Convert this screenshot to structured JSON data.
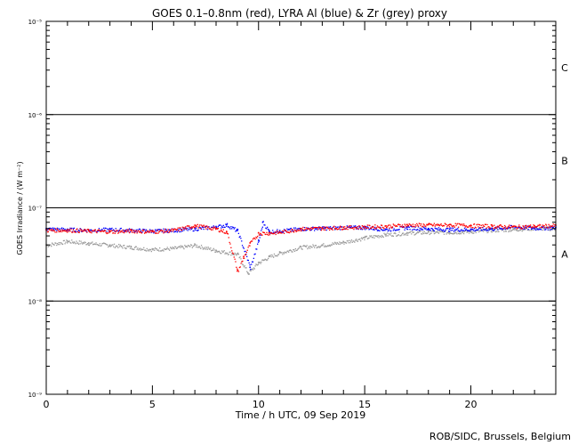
{
  "chart_data": {
    "type": "scatter",
    "title": "GOES 0.1–0.8nm (red), LYRA Al (blue) & Zr (grey) proxy",
    "xlabel": "Time / h UTC, 09 Sep 2019",
    "ylabel": "GOES Irradiance / (W m⁻²)",
    "xlim": [
      0,
      24
    ],
    "ylim": [
      1e-09,
      1e-05
    ],
    "yscale": "log",
    "x_ticks": [
      0,
      5,
      10,
      15,
      20
    ],
    "x_tick_labels": [
      "0",
      "5",
      "10",
      "15",
      "20"
    ],
    "y_ticks": [
      1e-09,
      1e-08,
      1e-07,
      1e-06,
      1e-05
    ],
    "y_tick_labels": [
      "10⁻⁹",
      "10⁻⁸",
      "10⁻⁷",
      "10⁻⁶",
      "10⁻⁵"
    ],
    "grid": "horizontal lines at 1e-8, 1e-7, 1e-6",
    "flare_classes": [
      {
        "label": "C",
        "value": 3.2e-06
      },
      {
        "label": "B",
        "value": 3.2e-07
      },
      {
        "label": "A",
        "value": 3.2e-08
      }
    ],
    "series": [
      {
        "color": "#ff0000",
        "x": [
          0,
          1,
          2,
          3,
          4,
          5,
          6,
          7,
          8,
          8.5,
          9,
          9.3,
          9.6,
          10,
          10.5,
          11,
          12,
          13,
          14,
          15,
          16,
          17,
          18,
          19,
          20,
          21,
          22,
          23,
          24
        ],
        "values": [
          5.8e-08,
          5.8e-08,
          5.7e-08,
          5.6e-08,
          5.7e-08,
          5.6e-08,
          5.8e-08,
          6.5e-08,
          6e-08,
          5.5e-08,
          2.1e-08,
          3e-08,
          4.2e-08,
          5.4e-08,
          5.4e-08,
          5.5e-08,
          6e-08,
          6.1e-08,
          6.2e-08,
          6.3e-08,
          6.4e-08,
          6.6e-08,
          6.6e-08,
          6.6e-08,
          6.5e-08,
          6.4e-08,
          6.3e-08,
          6.4e-08,
          6.5e-08
        ]
      },
      {
        "color": "#0000ff",
        "x": [
          0,
          1,
          2,
          3,
          4,
          5,
          6,
          7,
          8,
          8.5,
          9,
          9.6,
          10,
          10.2,
          10.5,
          11,
          12,
          13,
          14,
          15,
          16,
          17,
          18,
          19,
          20,
          21,
          22,
          23,
          24
        ],
        "values": [
          6e-08,
          5.9e-08,
          5.8e-08,
          5.9e-08,
          5.8e-08,
          5.7e-08,
          5.8e-08,
          6e-08,
          6.3e-08,
          6.6e-08,
          5.7e-08,
          2.3e-08,
          4.5e-08,
          7e-08,
          5.6e-08,
          5.7e-08,
          6e-08,
          6.1e-08,
          6.2e-08,
          6.2e-08,
          5.9e-08,
          6.2e-08,
          6e-08,
          5.9e-08,
          5.9e-08,
          6e-08,
          6.3e-08,
          6.1e-08,
          6.2e-08
        ]
      },
      {
        "color": "#9a9a9a",
        "x": [
          0,
          1,
          2,
          3,
          4,
          5,
          6,
          7,
          8,
          9,
          9.5,
          10,
          10.5,
          11,
          12,
          13,
          14,
          15,
          16,
          17,
          18,
          19,
          20,
          21,
          22,
          23,
          24
        ],
        "values": [
          4e-08,
          4.4e-08,
          4.2e-08,
          4e-08,
          3.8e-08,
          3.6e-08,
          3.7e-08,
          4e-08,
          3.5e-08,
          3.2e-08,
          2e-08,
          2.6e-08,
          3e-08,
          3.3e-08,
          3.8e-08,
          4e-08,
          4.3e-08,
          4.8e-08,
          5.2e-08,
          5.4e-08,
          5.5e-08,
          5.5e-08,
          5.6e-08,
          5.8e-08,
          5.9e-08,
          6.1e-08,
          6e-08
        ]
      }
    ]
  },
  "footer": {
    "credit": "ROB/SIDC, Brussels, Belgium"
  }
}
